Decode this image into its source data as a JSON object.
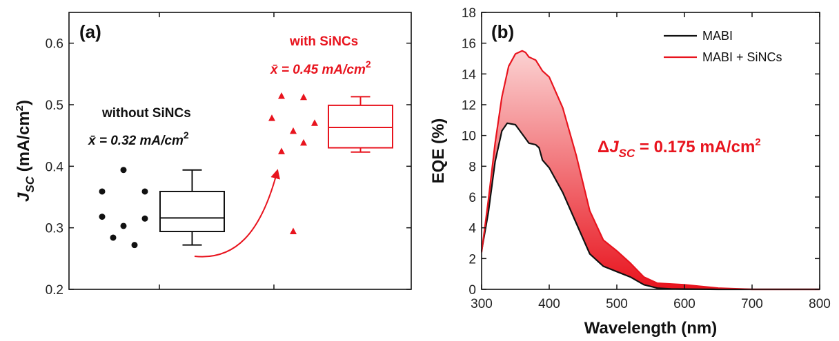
{
  "chart_data": [
    {
      "type": "box",
      "panel_label": "(a)",
      "ylabel_main": "J",
      "ylabel_sub": "SC",
      "ylabel_unit": " (mA/cm",
      "ylabel_sup": "2",
      "ylabel_close": ")",
      "ylim": [
        0.2,
        0.65
      ],
      "yticks": [
        "0.2",
        "0.3",
        "0.4",
        "0.5",
        "0.6"
      ],
      "groups": [
        {
          "name": "without SiNCs",
          "mean_label": "x̄ = 0.32 mA/cm",
          "mean_sup": "2",
          "color": "#111111",
          "marker": "circle",
          "points": [
            0.359,
            0.318,
            0.284,
            0.394,
            0.303,
            0.272,
            0.359,
            0.315
          ],
          "box": {
            "min": 0.272,
            "q1": 0.294,
            "median": 0.316,
            "q3": 0.359,
            "max": 0.394
          }
        },
        {
          "name": "with SiNCs",
          "mean_label": "x̄ = 0.45 mA/cm",
          "mean_sup": "2",
          "color": "#e8141e",
          "marker": "triangle",
          "points": [
            0.478,
            0.424,
            0.514,
            0.457,
            0.294,
            0.512,
            0.438,
            0.47
          ],
          "box": {
            "min": 0.423,
            "q1": 0.43,
            "median": 0.463,
            "q3": 0.499,
            "max": 0.513
          }
        }
      ]
    },
    {
      "type": "line",
      "panel_label": "(b)",
      "xlabel": "Wavelength (nm)",
      "ylabel": "EQE (%)",
      "xlim": [
        300,
        800
      ],
      "ylim": [
        0,
        18
      ],
      "xticks": [
        "300",
        "400",
        "500",
        "600",
        "700",
        "800"
      ],
      "yticks": [
        "0",
        "2",
        "4",
        "6",
        "8",
        "10",
        "12",
        "14",
        "16",
        "18"
      ],
      "annotation": {
        "prefix": "Δ",
        "main": "J",
        "sub": "SC",
        "rest": " = 0.175 mA/cm",
        "sup": "2"
      },
      "series": [
        {
          "name": "MABI",
          "color": "#111111",
          "x": [
            300,
            310,
            320,
            330,
            338,
            350,
            360,
            370,
            380,
            385,
            390,
            400,
            420,
            440,
            460,
            480,
            500,
            520,
            540,
            560,
            580,
            600,
            650,
            700,
            800
          ],
          "y": [
            2.5,
            5.0,
            8.3,
            10.3,
            10.8,
            10.7,
            10.1,
            9.5,
            9.4,
            9.2,
            8.4,
            7.9,
            6.3,
            4.3,
            2.3,
            1.5,
            1.15,
            0.8,
            0.3,
            0.08,
            0.03,
            0.02,
            0.0,
            0.0,
            0.0
          ]
        },
        {
          "name": "MABI + SiNCs",
          "color": "#e8141e",
          "x": [
            300,
            310,
            320,
            330,
            340,
            350,
            360,
            365,
            370,
            380,
            390,
            400,
            420,
            440,
            460,
            480,
            500,
            520,
            540,
            560,
            580,
            600,
            650,
            700,
            800
          ],
          "y": [
            2.4,
            5.8,
            9.5,
            12.5,
            14.5,
            15.3,
            15.5,
            15.4,
            15.1,
            14.9,
            14.2,
            13.8,
            11.8,
            8.7,
            5.1,
            3.2,
            2.5,
            1.7,
            0.8,
            0.4,
            0.35,
            0.3,
            0.08,
            0.0,
            0.0
          ]
        }
      ]
    }
  ]
}
